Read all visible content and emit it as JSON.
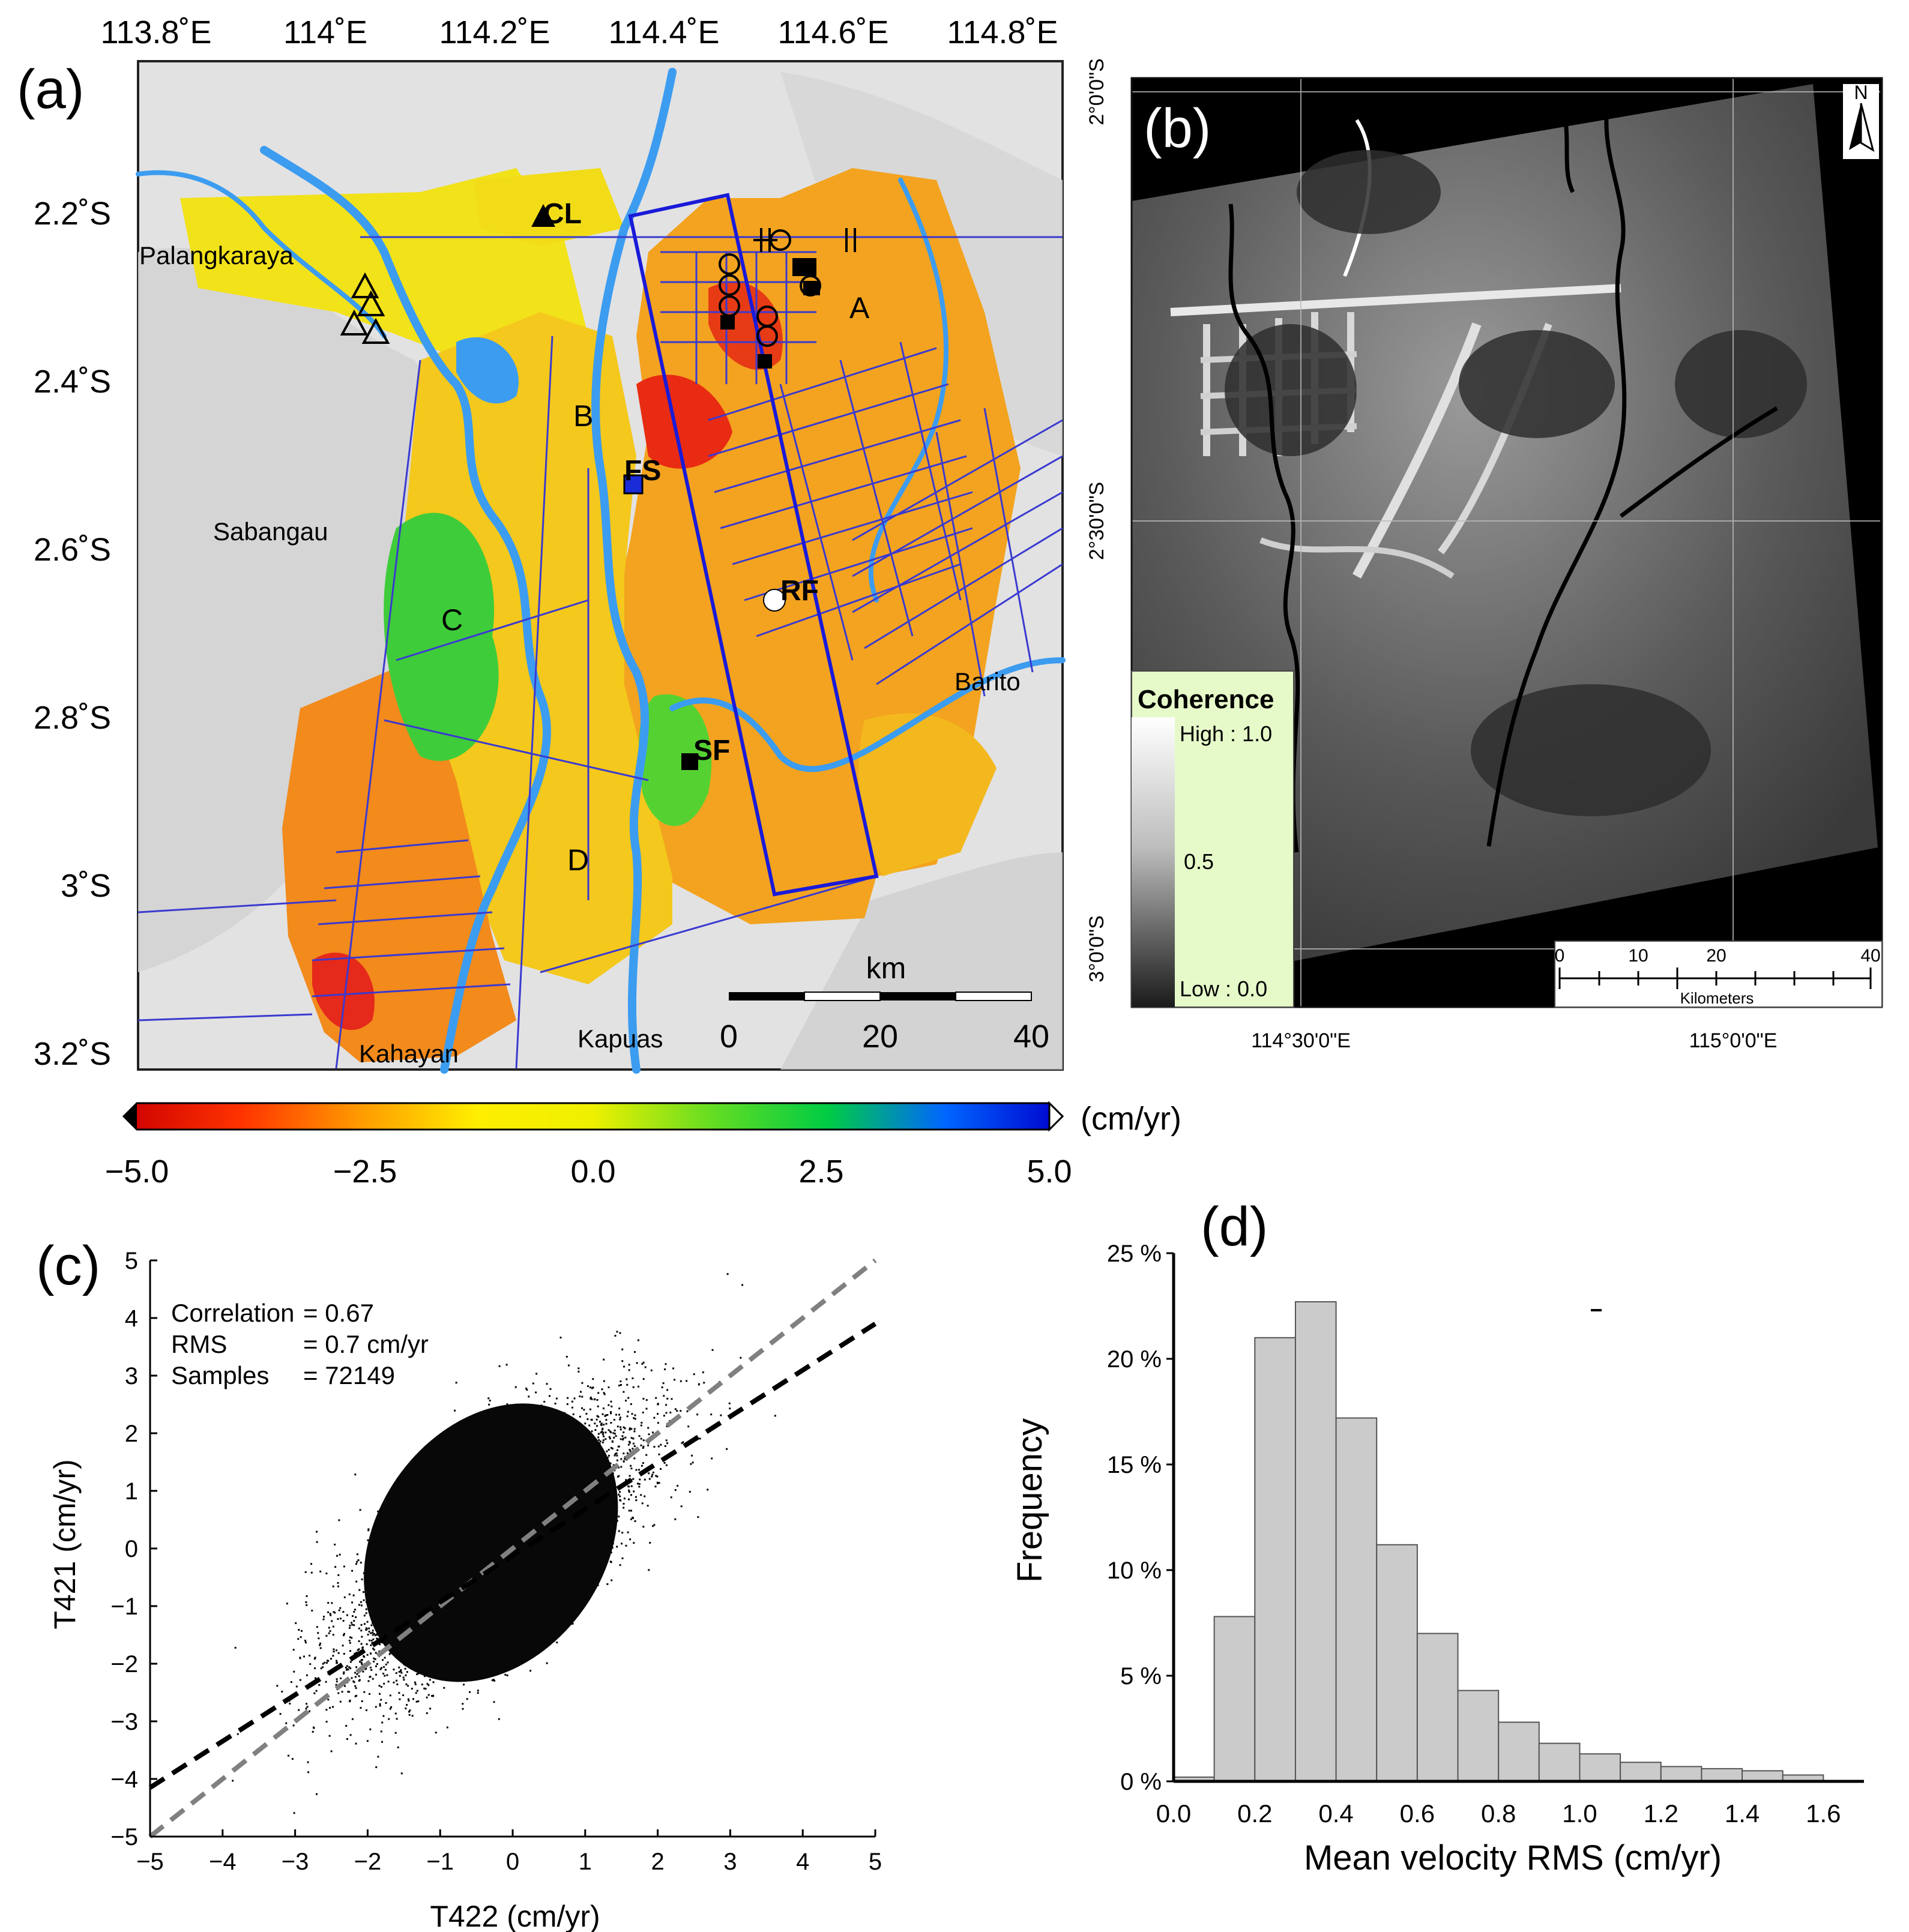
{
  "panel_labels": {
    "a": "(a)",
    "b": "(b)",
    "c": "(c)",
    "d": "(d)"
  },
  "map_a": {
    "lon_ticks": [
      "113.8˚E",
      "114˚E",
      "114.2˚E",
      "114.4˚E",
      "114.6˚E",
      "114.8˚E"
    ],
    "lat_ticks": [
      "2.2˚S",
      "2.4˚S",
      "2.6˚S",
      "2.8˚S",
      "3˚S",
      "3.2˚S"
    ],
    "places": {
      "palangkaraya": "Palangkaraya",
      "sabangau": "Sabangau",
      "kahayan": "Kahayan",
      "kapuas": "Kapuas",
      "barito": "Barito"
    },
    "zones": {
      "a": "A",
      "b": "B",
      "c": "C",
      "d": "D"
    },
    "sites": {
      "cl": "CL",
      "fs": "FS",
      "rf": "RF",
      "sf": "SF"
    },
    "scalebar": {
      "unit": "km",
      "ticks": [
        "0",
        "20",
        "40"
      ]
    }
  },
  "colorbar": {
    "unit": "(cm/yr)",
    "ticks": [
      "−5.0",
      "−2.5",
      "0.0",
      "2.5",
      "5.0"
    ],
    "colors": [
      "#cc0000",
      "#ff3300",
      "#ff9900",
      "#ffee00",
      "#eef000",
      "#66dd22",
      "#00cc44",
      "#0066ff",
      "#0000cc"
    ]
  },
  "map_b": {
    "lat_ticks": [
      "2°0'0\"S",
      "2°30'0\"S",
      "3°0'0\"S"
    ],
    "lon_ticks": [
      "114°30'0\"E",
      "115°0'0\"E"
    ],
    "north": "N",
    "legend": {
      "title": "Coherence",
      "high": "High : 1.0",
      "mid": "0.5",
      "low": "Low : 0.0"
    },
    "scalebar": {
      "ticks": [
        "0",
        "10",
        "20",
        "40"
      ],
      "label": "Kilometers"
    }
  },
  "chart_data": [
    {
      "type": "scatter",
      "xlabel": "T422 (cm/yr)",
      "ylabel": "T421 (cm/yr)",
      "xlim": [
        -5,
        5
      ],
      "ylim": [
        -5,
        5
      ],
      "x_ticks": [
        "−5",
        "−4",
        "−3",
        "−2",
        "−1",
        "0",
        "1",
        "2",
        "3",
        "4",
        "5"
      ],
      "y_ticks": [
        "−5",
        "−4",
        "−3",
        "−2",
        "−1",
        "0",
        "1",
        "2",
        "3",
        "4",
        "5"
      ],
      "stats": [
        {
          "label": "Correlation",
          "value": "= 0.67"
        },
        {
          "label": "RMS",
          "value": "= 0.7 cm/yr"
        },
        {
          "label": "Samples",
          "value": "= 72149"
        }
      ],
      "lines": [
        {
          "style": "gray-dashed",
          "x": [
            -5,
            5
          ],
          "y": [
            -5,
            5
          ]
        },
        {
          "style": "black-dashed",
          "x": [
            -5,
            5
          ],
          "y": [
            -4.15,
            3.9
          ]
        }
      ],
      "cluster": {
        "center_x": -0.3,
        "center_y": 0.0,
        "main_axis_slope": 0.8
      }
    },
    {
      "type": "bar",
      "xlabel": "Mean velocity RMS (cm/yr)",
      "ylabel": "Frequency",
      "xlim": [
        0,
        1.7
      ],
      "ylim": [
        0,
        25
      ],
      "x_ticks": [
        "0.0",
        "0.2",
        "0.4",
        "0.6",
        "0.8",
        "1.0",
        "1.2",
        "1.4",
        "1.6"
      ],
      "y_ticks": [
        "0 %",
        "5 %",
        "10 %",
        "15 %",
        "20 %",
        "25 %"
      ],
      "bin_width": 0.1,
      "bin_starts": [
        0.0,
        0.1,
        0.2,
        0.3,
        0.4,
        0.5,
        0.6,
        0.7,
        0.8,
        0.9,
        1.0,
        1.1,
        1.2,
        1.3,
        1.4,
        1.5
      ],
      "values": [
        0.2,
        7.8,
        21.0,
        22.7,
        17.2,
        11.2,
        7.0,
        4.3,
        2.8,
        1.8,
        1.3,
        0.9,
        0.7,
        0.6,
        0.5,
        0.3
      ]
    }
  ]
}
